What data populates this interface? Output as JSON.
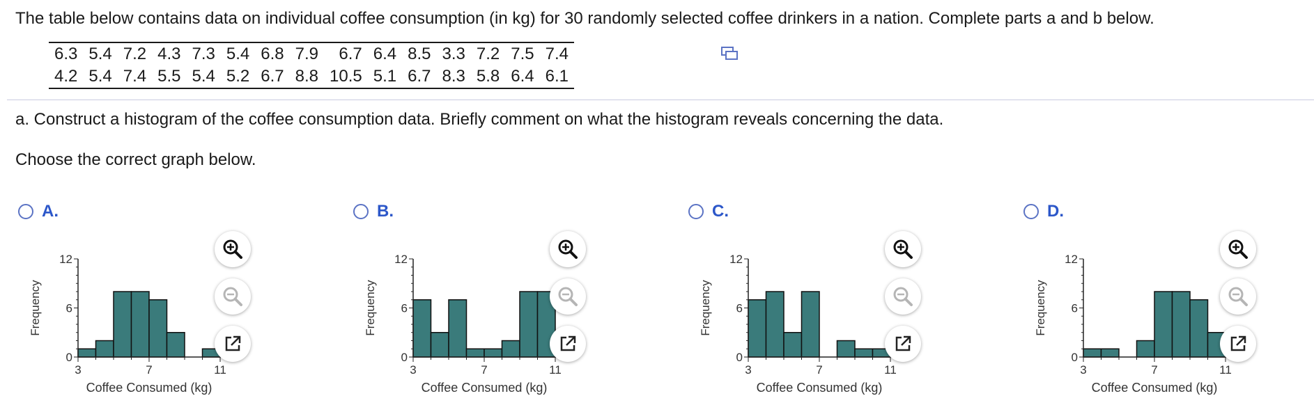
{
  "question": {
    "prompt": "The table below contains data on individual coffee consumption (in kg) for 30 randomly selected coffee drinkers in a nation. Complete parts a and b below.",
    "rows": [
      [
        "6.3",
        "5.4",
        "7.2",
        "4.3",
        "7.3",
        "5.4",
        "6.8",
        "7.9",
        "6.7",
        "6.4",
        "8.5",
        "3.3",
        "7.2",
        "7.5",
        "7.4"
      ],
      [
        "4.2",
        "5.4",
        "7.4",
        "5.5",
        "5.4",
        "5.2",
        "6.7",
        "8.8",
        "10.5",
        "5.1",
        "6.7",
        "8.3",
        "5.8",
        "6.4",
        "6.1"
      ]
    ],
    "part_a": "a. Construct a histogram of the coffee consumption data. Briefly comment on what the histogram reveals concerning the data.",
    "instruction": "Choose the correct graph below."
  },
  "colors": {
    "bar_fill": "#3a7b7b",
    "radio_border": "#5b73c4",
    "option_label": "#2c57c9"
  },
  "icons": {
    "copy": "copy-data-icon",
    "zoom_in": "zoom-in-icon",
    "zoom_out": "zoom-out-icon",
    "open": "open-new-window-icon"
  },
  "options": [
    {
      "label": "A."
    },
    {
      "label": "B."
    },
    {
      "label": "C."
    },
    {
      "label": "D."
    }
  ],
  "chart_data": [
    {
      "type": "bar",
      "xlabel": "Coffee Consumed (kg)",
      "ylabel": "Frequency",
      "bin_start": 3,
      "bin_width": 1,
      "values": [
        1,
        2,
        8,
        8,
        7,
        3,
        0,
        1
      ],
      "xticks": [
        "3",
        "7",
        "11"
      ],
      "yticks": [
        "0",
        "6",
        "12"
      ],
      "xlim": [
        3,
        11
      ],
      "ylim": [
        0,
        12
      ]
    },
    {
      "type": "bar",
      "xlabel": "Coffee Consumed (kg)",
      "ylabel": "Frequency",
      "bin_start": 3,
      "bin_width": 1,
      "values": [
        7,
        3,
        7,
        1,
        1,
        2,
        8,
        8
      ],
      "xticks": [
        "3",
        "7",
        "11"
      ],
      "yticks": [
        "0",
        "6",
        "12"
      ],
      "xlim": [
        3,
        11
      ],
      "ylim": [
        0,
        12
      ]
    },
    {
      "type": "bar",
      "xlabel": "Coffee Consumed (kg)",
      "ylabel": "Frequency",
      "bin_start": 3,
      "bin_width": 1,
      "values": [
        7,
        8,
        3,
        8,
        0,
        2,
        1,
        1
      ],
      "xticks": [
        "3",
        "7",
        "11"
      ],
      "yticks": [
        "0",
        "6",
        "12"
      ],
      "xlim": [
        3,
        11
      ],
      "ylim": [
        0,
        12
      ]
    },
    {
      "type": "bar",
      "xlabel": "Coffee Consumed (kg)",
      "ylabel": "Frequency",
      "bin_start": 3,
      "bin_width": 1,
      "values": [
        1,
        1,
        0,
        2,
        8,
        8,
        7,
        3
      ],
      "xticks": [
        "3",
        "7",
        "11"
      ],
      "yticks": [
        "0",
        "6",
        "12"
      ],
      "xlim": [
        3,
        11
      ],
      "ylim": [
        0,
        12
      ]
    }
  ]
}
